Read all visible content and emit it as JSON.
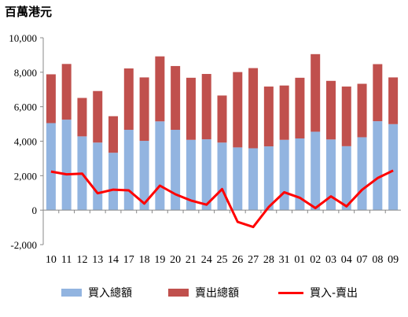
{
  "colors": {
    "buy": "#92b4e0",
    "sell": "#c0504d",
    "net": "#ff0000"
  },
  "chart_data": {
    "type": "bar",
    "stacked": true,
    "unit_title": "百萬港元",
    "categories": [
      "10",
      "11",
      "12",
      "13",
      "14",
      "17",
      "18",
      "19",
      "20",
      "21",
      "24",
      "25",
      "26",
      "27",
      "28",
      "31",
      "01",
      "02",
      "03",
      "04",
      "07",
      "08",
      "09"
    ],
    "series": [
      {
        "name": "買入總額",
        "kind": "bar",
        "values": [
          5050,
          5250,
          4280,
          3920,
          3330,
          4660,
          4020,
          5150,
          4660,
          4080,
          4110,
          3920,
          3640,
          3590,
          3700,
          4080,
          4160,
          4550,
          4100,
          3710,
          4230,
          5160,
          4990
        ]
      },
      {
        "name": "賣出總額",
        "kind": "bar",
        "values": [
          2830,
          3230,
          2230,
          2990,
          2120,
          3560,
          3680,
          3770,
          3700,
          3600,
          3790,
          2730,
          4370,
          4650,
          3470,
          3150,
          3520,
          4500,
          3400,
          3460,
          3100,
          3310,
          2710
        ]
      },
      {
        "name": "買入-賣出",
        "kind": "line",
        "values": [
          2240,
          2080,
          2120,
          980,
          1190,
          1150,
          380,
          1420,
          920,
          560,
          320,
          1220,
          -680,
          -980,
          180,
          1040,
          720,
          120,
          800,
          220,
          1180,
          1860,
          2300
        ]
      }
    ],
    "y_ticks": [
      "-2,000",
      "0",
      "2,000",
      "4,000",
      "6,000",
      "8,000",
      "10,000"
    ],
    "ylim": [
      -2000,
      10000
    ],
    "grid": false,
    "legend_position": "bottom"
  }
}
